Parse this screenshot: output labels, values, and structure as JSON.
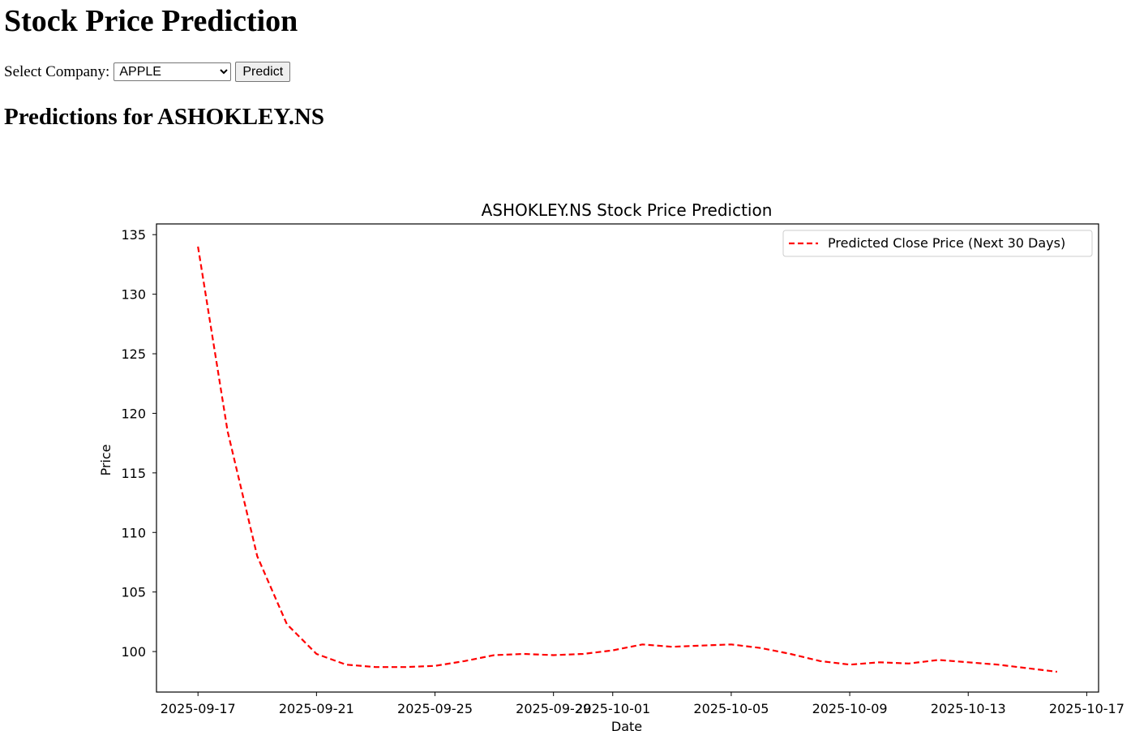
{
  "page": {
    "title": "Stock Price Prediction",
    "select_label": "Select Company:",
    "company_options": [
      "APPLE"
    ],
    "selected_company": "APPLE",
    "predict_label": "Predict",
    "predictions_heading": "Predictions for ASHOKLEY.NS"
  },
  "chart_data": {
    "type": "line",
    "title": "ASHOKLEY.NS Stock Price Prediction",
    "xlabel": "Date",
    "ylabel": "Price",
    "x": [
      "2025-09-17",
      "2025-09-18",
      "2025-09-19",
      "2025-09-20",
      "2025-09-21",
      "2025-09-22",
      "2025-09-23",
      "2025-09-24",
      "2025-09-25",
      "2025-09-26",
      "2025-09-27",
      "2025-09-28",
      "2025-09-29",
      "2025-09-30",
      "2025-10-01",
      "2025-10-02",
      "2025-10-03",
      "2025-10-04",
      "2025-10-05",
      "2025-10-06",
      "2025-10-07",
      "2025-10-08",
      "2025-10-09",
      "2025-10-10",
      "2025-10-11",
      "2025-10-12",
      "2025-10-13",
      "2025-10-14",
      "2025-10-15",
      "2025-10-16"
    ],
    "series": [
      {
        "name": "Predicted Close Price (Next 30 Days)",
        "color": "#ff0000",
        "style": "dashed",
        "values": [
          134.0,
          118.5,
          108.0,
          102.3,
          99.8,
          98.9,
          98.7,
          98.7,
          98.8,
          99.2,
          99.7,
          99.8,
          99.7,
          99.8,
          100.1,
          100.6,
          100.4,
          100.5,
          100.6,
          100.3,
          99.8,
          99.2,
          98.9,
          99.1,
          99.0,
          99.3,
          99.1,
          98.9,
          98.6,
          98.3
        ]
      }
    ],
    "xticks": [
      "2025-09-17",
      "2025-09-21",
      "2025-09-25",
      "2025-09-29",
      "2025-10-01",
      "2025-10-05",
      "2025-10-09",
      "2025-10-13",
      "2025-10-17"
    ],
    "yticks": [
      100,
      105,
      110,
      115,
      120,
      125,
      130,
      135
    ],
    "xlim": [
      "2025-09-15T14:22",
      "2025-10-17T09:36"
    ],
    "ylim": [
      96.6,
      135.9
    ],
    "legend": "upper right",
    "grid": false
  }
}
